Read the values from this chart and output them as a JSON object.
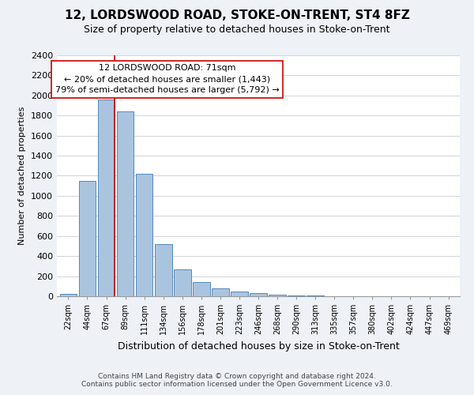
{
  "title": "12, LORDSWOOD ROAD, STOKE-ON-TRENT, ST4 8FZ",
  "subtitle": "Size of property relative to detached houses in Stoke-on-Trent",
  "xlabel": "Distribution of detached houses by size in Stoke-on-Trent",
  "ylabel": "Number of detached properties",
  "bin_labels": [
    "22sqm",
    "44sqm",
    "67sqm",
    "89sqm",
    "111sqm",
    "134sqm",
    "156sqm",
    "178sqm",
    "201sqm",
    "223sqm",
    "246sqm",
    "268sqm",
    "290sqm",
    "313sqm",
    "335sqm",
    "357sqm",
    "380sqm",
    "402sqm",
    "424sqm",
    "447sqm",
    "469sqm"
  ],
  "bar_values": [
    25,
    1150,
    1960,
    1840,
    1220,
    520,
    265,
    145,
    75,
    50,
    35,
    15,
    10,
    5,
    3,
    2,
    2,
    1,
    1,
    1,
    1
  ],
  "bar_color": "#aac4e0",
  "bar_edge_color": "#5588bb",
  "annotation_title": "12 LORDSWOOD ROAD: 71sqm",
  "annotation_line1": "← 20% of detached houses are smaller (1,443)",
  "annotation_line2": "79% of semi-detached houses are larger (5,792) →",
  "vline_x": 2.42,
  "vline_color": "#cc0000",
  "ylim": [
    0,
    2400
  ],
  "yticks": [
    0,
    200,
    400,
    600,
    800,
    1000,
    1200,
    1400,
    1600,
    1800,
    2000,
    2200,
    2400
  ],
  "footer1": "Contains HM Land Registry data © Crown copyright and database right 2024.",
  "footer2": "Contains public sector information licensed under the Open Government Licence v3.0.",
  "bg_color": "#eef2f7",
  "plot_bg_color": "#ffffff",
  "title_fontsize": 11,
  "subtitle_fontsize": 9,
  "ylabel_fontsize": 8,
  "xlabel_fontsize": 9,
  "tick_fontsize": 8,
  "xtick_fontsize": 7,
  "footer_fontsize": 6.5,
  "annot_fontsize": 8
}
